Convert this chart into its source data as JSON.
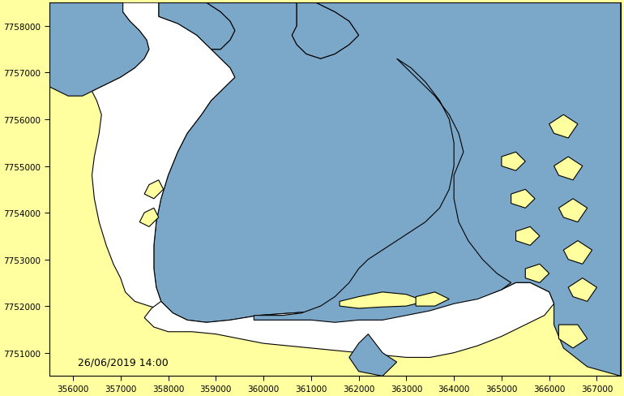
{
  "xlim": [
    355500,
    367500
  ],
  "ylim": [
    7750500,
    7758500
  ],
  "xticks": [
    356000,
    357000,
    358000,
    359000,
    360000,
    361000,
    362000,
    363000,
    364000,
    365000,
    366000,
    367000
  ],
  "yticks": [
    7751000,
    7752000,
    7753000,
    7754000,
    7755000,
    7756000,
    7757000,
    7758000
  ],
  "bg_color": "#FFFFA0",
  "water_color": "#7BA7C9",
  "tidal_color": "#FFFFFF",
  "outline_color": "#000000",
  "date_label": "26/06/2019 14:00",
  "date_fontsize": 9,
  "tick_fontsize": 7.5,
  "linewidth": 0.8,
  "white_main": [
    [
      357800,
      7758200
    ],
    [
      358200,
      7758050
    ],
    [
      358600,
      7757800
    ],
    [
      358900,
      7757500
    ],
    [
      359100,
      7757300
    ],
    [
      359300,
      7757100
    ],
    [
      359400,
      7756900
    ],
    [
      359200,
      7756700
    ],
    [
      358900,
      7756400
    ],
    [
      358700,
      7756100
    ],
    [
      358400,
      7755700
    ],
    [
      358200,
      7755300
    ],
    [
      358000,
      7754800
    ],
    [
      357850,
      7754300
    ],
    [
      357750,
      7753800
    ],
    [
      357700,
      7753300
    ],
    [
      357700,
      7752800
    ],
    [
      357750,
      7752400
    ],
    [
      357850,
      7752100
    ],
    [
      357950,
      7751900
    ],
    [
      357600,
      7752000
    ],
    [
      357300,
      7752100
    ],
    [
      357100,
      7752300
    ],
    [
      357000,
      7752600
    ],
    [
      356850,
      7752900
    ],
    [
      356700,
      7753300
    ],
    [
      356550,
      7753800
    ],
    [
      356450,
      7754300
    ],
    [
      356400,
      7754800
    ],
    [
      356450,
      7755200
    ],
    [
      356550,
      7755700
    ],
    [
      356600,
      7756100
    ],
    [
      356500,
      7756400
    ],
    [
      356400,
      7756600
    ],
    [
      356700,
      7756750
    ],
    [
      357000,
      7756900
    ],
    [
      357300,
      7757100
    ],
    [
      357500,
      7757300
    ],
    [
      357600,
      7757500
    ],
    [
      357550,
      7757700
    ],
    [
      357400,
      7757900
    ],
    [
      357200,
      7758100
    ],
    [
      357050,
      7758300
    ],
    [
      357050,
      7758500
    ],
    [
      357800,
      7758500
    ],
    [
      357800,
      7758200
    ]
  ],
  "white_lower": [
    [
      357850,
      7752100
    ],
    [
      358100,
      7751850
    ],
    [
      358400,
      7751700
    ],
    [
      358800,
      7751650
    ],
    [
      359300,
      7751700
    ],
    [
      359900,
      7751800
    ],
    [
      360600,
      7751850
    ],
    [
      361300,
      7751900
    ],
    [
      362000,
      7751950
    ],
    [
      362600,
      7752050
    ],
    [
      363100,
      7752100
    ],
    [
      363600,
      7752150
    ],
    [
      364100,
      7752150
    ],
    [
      364600,
      7752200
    ],
    [
      365000,
      7752350
    ],
    [
      365300,
      7752500
    ],
    [
      365600,
      7752500
    ],
    [
      366000,
      7752300
    ],
    [
      366100,
      7752050
    ],
    [
      365900,
      7751800
    ],
    [
      365500,
      7751600
    ],
    [
      365000,
      7751350
    ],
    [
      364500,
      7751150
    ],
    [
      364000,
      7751000
    ],
    [
      363500,
      7750900
    ],
    [
      363000,
      7750900
    ],
    [
      362500,
      7750950
    ],
    [
      362000,
      7751000
    ],
    [
      361500,
      7751050
    ],
    [
      361000,
      7751100
    ],
    [
      360500,
      7751150
    ],
    [
      360000,
      7751200
    ],
    [
      359500,
      7751300
    ],
    [
      359000,
      7751400
    ],
    [
      358500,
      7751450
    ],
    [
      358000,
      7751450
    ],
    [
      357700,
      7751550
    ],
    [
      357500,
      7751750
    ],
    [
      357650,
      7751950
    ],
    [
      357850,
      7752100
    ]
  ],
  "white_lower_islands_yellow": [
    [
      [
        361800,
        7751950
      ],
      [
        362100,
        7752200
      ],
      [
        362600,
        7752300
      ],
      [
        363100,
        7752250
      ],
      [
        363500,
        7752100
      ],
      [
        363100,
        7751950
      ],
      [
        362500,
        7751950
      ],
      [
        361800,
        7751950
      ]
    ],
    [
      [
        363200,
        7752250
      ],
      [
        363600,
        7752350
      ],
      [
        364000,
        7752200
      ],
      [
        363700,
        7752000
      ],
      [
        363200,
        7752000
      ],
      [
        363200,
        7752250
      ]
    ]
  ],
  "blue_left_top": [
    [
      355500,
      7758500
    ],
    [
      357050,
      7758500
    ],
    [
      357050,
      7758300
    ],
    [
      357200,
      7758100
    ],
    [
      357400,
      7757900
    ],
    [
      357550,
      7757700
    ],
    [
      357600,
      7757500
    ],
    [
      357500,
      7757300
    ],
    [
      357300,
      7757100
    ],
    [
      357000,
      7756900
    ],
    [
      356700,
      7756750
    ],
    [
      356400,
      7756600
    ],
    [
      356200,
      7756500
    ],
    [
      355900,
      7756500
    ],
    [
      355500,
      7756700
    ],
    [
      355500,
      7758500
    ]
  ],
  "blue_left_inlet": [
    [
      355500,
      7757200
    ],
    [
      355900,
      7757000
    ],
    [
      356300,
      7756800
    ],
    [
      356700,
      7756750
    ],
    [
      356400,
      7756600
    ],
    [
      355500,
      7756700
    ],
    [
      355500,
      7757200
    ]
  ],
  "blue_top_bay": [
    [
      357800,
      7758500
    ],
    [
      358800,
      7758500
    ],
    [
      359100,
      7758300
    ],
    [
      359300,
      7758100
    ],
    [
      359400,
      7757900
    ],
    [
      359300,
      7757700
    ],
    [
      359100,
      7757500
    ],
    [
      358900,
      7757500
    ],
    [
      358600,
      7757800
    ],
    [
      358200,
      7758050
    ],
    [
      357800,
      7758200
    ],
    [
      357800,
      7758500
    ]
  ],
  "blue_top_inlet_right": [
    [
      360700,
      7758500
    ],
    [
      361100,
      7758500
    ],
    [
      361500,
      7758300
    ],
    [
      361800,
      7758100
    ],
    [
      362000,
      7757800
    ],
    [
      361800,
      7757600
    ],
    [
      361500,
      7757400
    ],
    [
      361200,
      7757300
    ],
    [
      360900,
      7757400
    ],
    [
      360700,
      7757600
    ],
    [
      360600,
      7757800
    ],
    [
      360700,
      7758000
    ],
    [
      360700,
      7758500
    ]
  ],
  "blue_right_ocean": [
    [
      365000,
      7758500
    ],
    [
      367500,
      7758500
    ],
    [
      367500,
      7750500
    ],
    [
      366800,
      7750700
    ],
    [
      366300,
      7751100
    ],
    [
      366100,
      7751600
    ],
    [
      366100,
      7752050
    ],
    [
      366000,
      7752300
    ],
    [
      365600,
      7752500
    ],
    [
      365300,
      7752500
    ],
    [
      365000,
      7752350
    ],
    [
      364600,
      7752200
    ],
    [
      364100,
      7752150
    ],
    [
      363600,
      7752150
    ],
    [
      363100,
      7752100
    ],
    [
      362600,
      7752050
    ],
    [
      362000,
      7751950
    ],
    [
      361300,
      7751900
    ],
    [
      360600,
      7751850
    ],
    [
      359900,
      7751800
    ],
    [
      359300,
      7751700
    ],
    [
      358800,
      7751650
    ],
    [
      358400,
      7751700
    ],
    [
      358100,
      7751850
    ],
    [
      357850,
      7752100
    ],
    [
      357750,
      7752400
    ],
    [
      357700,
      7752800
    ],
    [
      357700,
      7753300
    ],
    [
      357750,
      7753800
    ],
    [
      357850,
      7754300
    ],
    [
      358000,
      7754800
    ],
    [
      358200,
      7755300
    ],
    [
      358400,
      7755700
    ],
    [
      358700,
      7756100
    ],
    [
      358900,
      7756400
    ],
    [
      359200,
      7756700
    ],
    [
      359400,
      7756900
    ],
    [
      359300,
      7757100
    ],
    [
      359100,
      7757300
    ],
    [
      358900,
      7757500
    ],
    [
      359100,
      7757500
    ],
    [
      359300,
      7757700
    ],
    [
      359400,
      7757900
    ],
    [
      359300,
      7758100
    ],
    [
      359100,
      7758300
    ],
    [
      358800,
      7758500
    ],
    [
      360700,
      7758500
    ],
    [
      360700,
      7758000
    ],
    [
      360600,
      7757800
    ],
    [
      360700,
      7757600
    ],
    [
      360900,
      7757400
    ],
    [
      361200,
      7757300
    ],
    [
      361500,
      7757400
    ],
    [
      361800,
      7757600
    ],
    [
      362000,
      7757800
    ],
    [
      361800,
      7758100
    ],
    [
      361500,
      7758300
    ],
    [
      361100,
      7758500
    ],
    [
      365000,
      7758500
    ]
  ],
  "blue_right_channel": [
    [
      363000,
      7757500
    ],
    [
      363200,
      7757300
    ],
    [
      363500,
      7757000
    ],
    [
      363800,
      7756700
    ],
    [
      364000,
      7756300
    ],
    [
      364200,
      7755900
    ],
    [
      364300,
      7755500
    ],
    [
      364300,
      7755000
    ],
    [
      364200,
      7754500
    ],
    [
      364000,
      7754000
    ],
    [
      363700,
      7753600
    ],
    [
      363400,
      7753300
    ],
    [
      363100,
      7753100
    ],
    [
      362800,
      7752950
    ],
    [
      362500,
      7752800
    ],
    [
      362100,
      7752700
    ],
    [
      361800,
      7752600
    ],
    [
      361600,
      7752400
    ],
    [
      361300,
      7752200
    ],
    [
      361000,
      7752100
    ],
    [
      362000,
      7751950
    ],
    [
      362600,
      7752050
    ],
    [
      363100,
      7752100
    ],
    [
      363600,
      7752150
    ],
    [
      364100,
      7752150
    ],
    [
      364600,
      7752200
    ],
    [
      365000,
      7752350
    ],
    [
      365300,
      7752500
    ],
    [
      365000,
      7752650
    ],
    [
      364700,
      7752900
    ],
    [
      364400,
      7753300
    ],
    [
      364200,
      7753700
    ],
    [
      364100,
      7754200
    ],
    [
      364100,
      7754700
    ],
    [
      364300,
      7755200
    ],
    [
      364200,
      7755700
    ],
    [
      364000,
      7756200
    ],
    [
      363700,
      7756600
    ],
    [
      363400,
      7756900
    ],
    [
      363000,
      7757200
    ],
    [
      362800,
      7757400
    ],
    [
      362600,
      7757600
    ],
    [
      362300,
      7757700
    ],
    [
      362000,
      7757700
    ],
    [
      361800,
      7757600
    ],
    [
      362000,
      7757800
    ],
    [
      361800,
      7758100
    ],
    [
      362000,
      7758200
    ],
    [
      362300,
      7758000
    ],
    [
      362600,
      7757800
    ],
    [
      362900,
      7757600
    ],
    [
      363200,
      7757400
    ],
    [
      363000,
      7757500
    ]
  ],
  "blue_lower_small": [
    [
      362200,
      7751400
    ],
    [
      362500,
      7751000
    ],
    [
      362800,
      7750800
    ],
    [
      362500,
      7750500
    ],
    [
      362000,
      7750600
    ],
    [
      361800,
      7750900
    ],
    [
      362000,
      7751200
    ],
    [
      362200,
      7751400
    ]
  ],
  "blue_right_coast_detail": [
    [
      364200,
      7755600
    ],
    [
      364000,
      7756000
    ],
    [
      363800,
      7756400
    ],
    [
      363500,
      7756700
    ],
    [
      363200,
      7757000
    ],
    [
      363000,
      7757200
    ],
    [
      363200,
      7757400
    ],
    [
      363500,
      7757200
    ],
    [
      363800,
      7756900
    ],
    [
      364100,
      7756500
    ],
    [
      364300,
      7756000
    ],
    [
      364400,
      7755600
    ],
    [
      364300,
      7755200
    ],
    [
      364100,
      7754700
    ],
    [
      364100,
      7754200
    ],
    [
      364300,
      7753700
    ],
    [
      364600,
      7753300
    ],
    [
      364900,
      7753000
    ],
    [
      365200,
      7752800
    ],
    [
      365500,
      7752600
    ],
    [
      365300,
      7752500
    ],
    [
      365000,
      7752350
    ],
    [
      364600,
      7752200
    ],
    [
      364500,
      7752700
    ],
    [
      364300,
      7753200
    ],
    [
      364100,
      7753600
    ],
    [
      363800,
      7754000
    ],
    [
      363600,
      7754400
    ],
    [
      363500,
      7754800
    ],
    [
      363600,
      7755200
    ],
    [
      363900,
      7755600
    ],
    [
      364200,
      7755600
    ]
  ],
  "yellow_islands_in_blue_right": [
    [
      [
        366000,
        7755900
      ],
      [
        366300,
        7756100
      ],
      [
        366600,
        7755900
      ],
      [
        366400,
        7755600
      ],
      [
        366100,
        7755700
      ],
      [
        366000,
        7755900
      ]
    ],
    [
      [
        366100,
        7755000
      ],
      [
        366400,
        7755200
      ],
      [
        366700,
        7755000
      ],
      [
        366500,
        7754700
      ],
      [
        366200,
        7754800
      ],
      [
        366100,
        7755000
      ]
    ],
    [
      [
        366200,
        7754100
      ],
      [
        366500,
        7754300
      ],
      [
        366800,
        7754100
      ],
      [
        366600,
        7753800
      ],
      [
        366300,
        7753900
      ],
      [
        366200,
        7754100
      ]
    ],
    [
      [
        366300,
        7753200
      ],
      [
        366600,
        7753400
      ],
      [
        366900,
        7753200
      ],
      [
        366700,
        7752900
      ],
      [
        366400,
        7753000
      ],
      [
        366300,
        7753200
      ]
    ],
    [
      [
        366400,
        7752400
      ],
      [
        366700,
        7752600
      ],
      [
        367000,
        7752400
      ],
      [
        366800,
        7752100
      ],
      [
        366500,
        7752200
      ],
      [
        366400,
        7752400
      ]
    ],
    [
      [
        366200,
        7751600
      ],
      [
        366600,
        7751600
      ],
      [
        366800,
        7751300
      ],
      [
        366500,
        7751100
      ],
      [
        366200,
        7751300
      ],
      [
        366200,
        7751600
      ]
    ]
  ],
  "yellow_islands_in_blue_right2": [
    [
      [
        365000,
        7755200
      ],
      [
        365300,
        7755300
      ],
      [
        365500,
        7755100
      ],
      [
        365300,
        7754900
      ],
      [
        365000,
        7755000
      ],
      [
        365000,
        7755200
      ]
    ],
    [
      [
        365200,
        7754400
      ],
      [
        365500,
        7754500
      ],
      [
        365700,
        7754300
      ],
      [
        365500,
        7754100
      ],
      [
        365200,
        7754200
      ],
      [
        365200,
        7754400
      ]
    ],
    [
      [
        365300,
        7753600
      ],
      [
        365600,
        7753700
      ],
      [
        365800,
        7753500
      ],
      [
        365600,
        7753300
      ],
      [
        365300,
        7753400
      ],
      [
        365300,
        7753600
      ]
    ],
    [
      [
        365500,
        7752800
      ],
      [
        365800,
        7752900
      ],
      [
        366000,
        7752700
      ],
      [
        365800,
        7752500
      ],
      [
        365500,
        7752600
      ],
      [
        365500,
        7752800
      ]
    ]
  ],
  "small_yellow_islands_white_estuary": [
    [
      [
        357600,
        7754600
      ],
      [
        357800,
        7754700
      ],
      [
        357900,
        7754500
      ],
      [
        357700,
        7754300
      ],
      [
        357500,
        7754400
      ],
      [
        357600,
        7754600
      ]
    ],
    [
      [
        357500,
        7754000
      ],
      [
        357700,
        7754100
      ],
      [
        357800,
        7753900
      ],
      [
        357600,
        7753700
      ],
      [
        357400,
        7753800
      ],
      [
        357500,
        7754000
      ]
    ]
  ]
}
